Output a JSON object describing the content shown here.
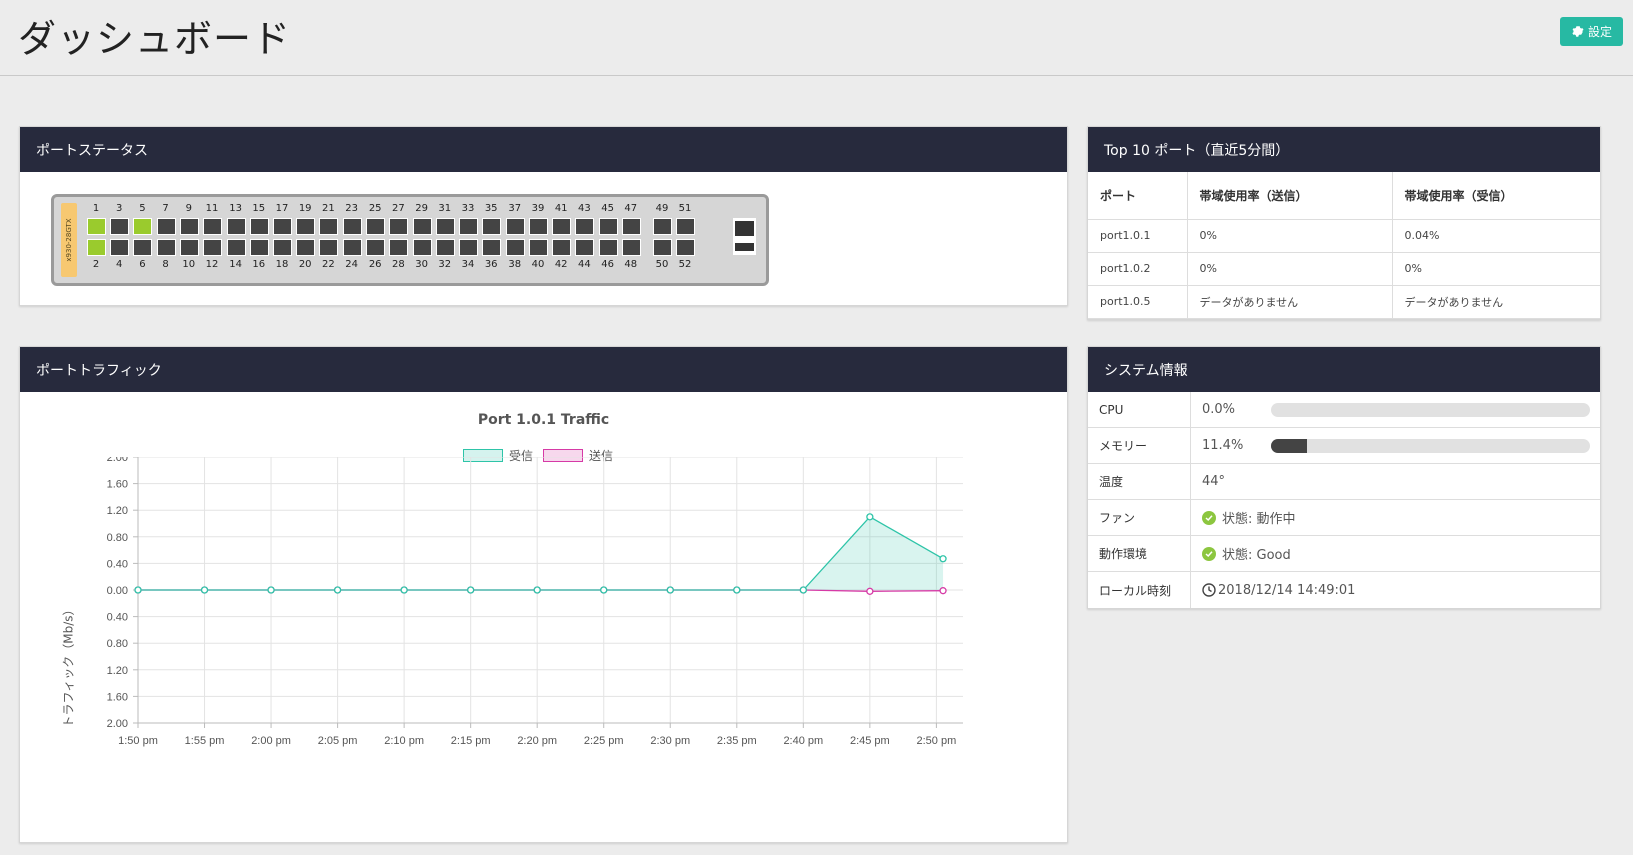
{
  "header": {
    "title": "ダッシュボード",
    "settings_label": "設定"
  },
  "port_status": {
    "title": "ポートステータス",
    "model": "x930-28GTX",
    "top_numbers": [
      "1",
      "3",
      "5",
      "7",
      "9",
      "11",
      "13",
      "15",
      "17",
      "19",
      "21",
      "23",
      "25",
      "27",
      "29",
      "31",
      "33",
      "35",
      "37",
      "39",
      "41",
      "43",
      "45",
      "47",
      "49",
      "51"
    ],
    "bottom_numbers": [
      "2",
      "4",
      "6",
      "8",
      "10",
      "12",
      "14",
      "16",
      "18",
      "20",
      "22",
      "24",
      "26",
      "28",
      "30",
      "32",
      "34",
      "36",
      "38",
      "40",
      "42",
      "44",
      "46",
      "48",
      "50",
      "52"
    ],
    "ports_up": [
      1,
      2,
      5
    ]
  },
  "top10": {
    "title": "Top 10 ポート（直近5分間）",
    "columns": [
      "ポート",
      "帯域使用率（送信）",
      "帯域使用率（受信）"
    ],
    "rows": [
      [
        "port1.0.1",
        "0%",
        "0.04%"
      ],
      [
        "port1.0.2",
        "0%",
        "0%"
      ],
      [
        "port1.0.5",
        "データがありません",
        "データがありません"
      ]
    ]
  },
  "traffic": {
    "title": "ポートトラフィック"
  },
  "system": {
    "title": "システム情報",
    "cpu_label": "CPU",
    "cpu_value": "0.0%",
    "cpu_fraction": 0.0,
    "memory_label": "メモリー",
    "memory_value": "11.4%",
    "memory_fraction": 0.114,
    "temp_label": "温度",
    "temp_value": "44°",
    "fan_label": "ファン",
    "fan_value": "状態: 動作中",
    "env_label": "動作環境",
    "env_value": "状態: Good",
    "time_label": "ローカル時刻",
    "time_value": "2018/12/14 14:49:01"
  },
  "colors": {
    "header_bg": "#272a3d",
    "accent": "#27b9a3",
    "port_up": "#9acb2d",
    "rx": "#2ec4a8",
    "tx": "#d63aa6"
  },
  "chart_data": {
    "type": "line",
    "title": "Port 1.0.1 Traffic",
    "ylabel": "トラフィック（Mb/s）",
    "xlabel": "",
    "categories": [
      "1:50 pm",
      "1:55 pm",
      "2:00 pm",
      "2:05 pm",
      "2:10 pm",
      "2:15 pm",
      "2:20 pm",
      "2:25 pm",
      "2:30 pm",
      "2:35 pm",
      "2:40 pm",
      "2:45 pm",
      "2:50 pm"
    ],
    "y_ticks": [
      "2.00",
      "1.60",
      "1.20",
      "0.80",
      "0.40",
      "0.00",
      "0.40",
      "0.80",
      "1.20",
      "1.60",
      "2.00"
    ],
    "ylim": [
      -2,
      2
    ],
    "grid": true,
    "legend_position": "top",
    "series": [
      {
        "name": "受信",
        "x": [
          0,
          1,
          2,
          3,
          4,
          5,
          6,
          7,
          8,
          9,
          10,
          11,
          12.1
        ],
        "values": [
          0,
          0,
          0,
          0,
          0,
          0,
          0,
          0,
          0,
          0,
          0,
          1.1,
          0.47
        ],
        "fill": true
      },
      {
        "name": "送信",
        "x": [
          0,
          1,
          2,
          3,
          4,
          5,
          6,
          7,
          8,
          9,
          10,
          11,
          12.1
        ],
        "values": [
          0,
          0,
          0,
          0,
          0,
          0,
          0,
          0,
          0,
          0,
          0,
          -0.02,
          -0.01
        ],
        "fill": false
      }
    ]
  }
}
